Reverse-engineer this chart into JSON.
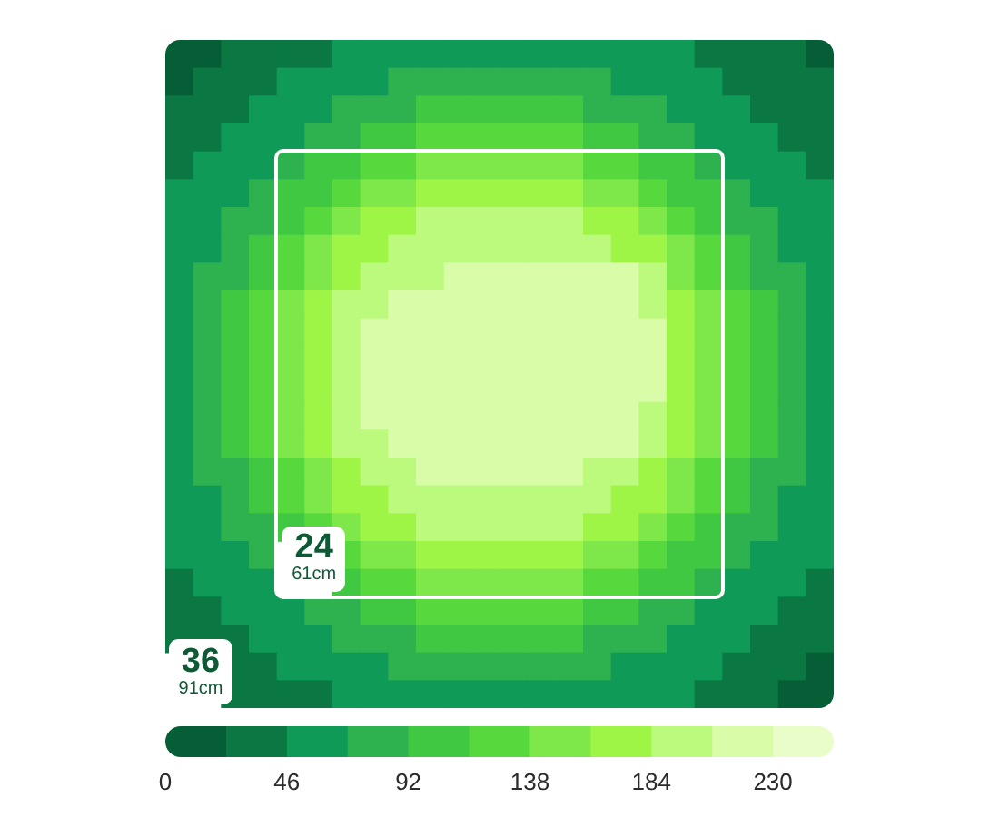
{
  "chart_data": {
    "type": "heatmap",
    "categories": [
      null,
      null,
      null,
      null,
      null,
      null,
      null,
      null,
      null,
      null,
      null,
      null,
      null,
      null,
      null,
      null,
      null,
      null,
      null,
      null,
      null,
      null,
      null,
      null
    ],
    "y_categories": [
      null,
      null,
      null,
      null,
      null,
      null,
      null,
      null,
      null,
      null,
      null,
      null,
      null,
      null,
      null,
      null,
      null,
      null,
      null,
      null,
      null,
      null,
      null,
      null
    ],
    "cells": [
      [
        12,
        12,
        35,
        35,
        35,
        35,
        58,
        58,
        58,
        58,
        58,
        58,
        58,
        58,
        58,
        58,
        58,
        58,
        58,
        35,
        35,
        35,
        35,
        12
      ],
      [
        12,
        35,
        35,
        35,
        58,
        58,
        58,
        58,
        81,
        81,
        81,
        81,
        81,
        81,
        81,
        81,
        58,
        58,
        58,
        58,
        35,
        35,
        35,
        35
      ],
      [
        35,
        35,
        35,
        58,
        58,
        58,
        81,
        81,
        81,
        104,
        104,
        104,
        104,
        104,
        104,
        81,
        81,
        81,
        58,
        58,
        58,
        35,
        35,
        35
      ],
      [
        35,
        35,
        58,
        58,
        58,
        81,
        81,
        104,
        104,
        127,
        127,
        127,
        127,
        127,
        127,
        104,
        104,
        81,
        81,
        58,
        58,
        58,
        35,
        35
      ],
      [
        35,
        58,
        58,
        58,
        81,
        104,
        104,
        127,
        127,
        150,
        150,
        150,
        150,
        150,
        150,
        127,
        127,
        104,
        104,
        81,
        58,
        58,
        58,
        35
      ],
      [
        58,
        58,
        58,
        81,
        104,
        104,
        127,
        150,
        150,
        173,
        173,
        173,
        173,
        173,
        173,
        150,
        150,
        127,
        104,
        104,
        81,
        58,
        58,
        58
      ],
      [
        58,
        58,
        81,
        81,
        104,
        127,
        150,
        173,
        173,
        196,
        196,
        196,
        196,
        196,
        196,
        173,
        173,
        150,
        127,
        104,
        81,
        81,
        58,
        58
      ],
      [
        58,
        58,
        81,
        104,
        127,
        150,
        173,
        173,
        196,
        196,
        196,
        196,
        196,
        196,
        196,
        196,
        173,
        173,
        150,
        127,
        104,
        81,
        58,
        58
      ],
      [
        58,
        81,
        81,
        104,
        127,
        150,
        173,
        196,
        196,
        196,
        219,
        219,
        219,
        219,
        219,
        219,
        219,
        196,
        150,
        127,
        104,
        81,
        81,
        58
      ],
      [
        58,
        81,
        104,
        127,
        150,
        173,
        196,
        196,
        219,
        219,
        219,
        219,
        219,
        219,
        219,
        219,
        219,
        196,
        173,
        150,
        127,
        104,
        81,
        58
      ],
      [
        58,
        81,
        104,
        127,
        150,
        173,
        196,
        219,
        219,
        219,
        219,
        219,
        219,
        219,
        219,
        219,
        219,
        219,
        173,
        150,
        127,
        104,
        81,
        58
      ],
      [
        58,
        81,
        104,
        127,
        150,
        173,
        196,
        219,
        219,
        219,
        219,
        219,
        219,
        219,
        219,
        219,
        219,
        219,
        173,
        150,
        127,
        104,
        81,
        58
      ],
      [
        58,
        81,
        104,
        127,
        150,
        173,
        196,
        219,
        219,
        219,
        219,
        219,
        219,
        219,
        219,
        219,
        219,
        219,
        173,
        150,
        127,
        104,
        81,
        58
      ],
      [
        58,
        81,
        104,
        127,
        150,
        173,
        196,
        219,
        219,
        219,
        219,
        219,
        219,
        219,
        219,
        219,
        219,
        196,
        173,
        150,
        127,
        104,
        81,
        58
      ],
      [
        58,
        81,
        104,
        127,
        150,
        173,
        196,
        196,
        219,
        219,
        219,
        219,
        219,
        219,
        219,
        219,
        219,
        196,
        173,
        150,
        127,
        104,
        81,
        58
      ],
      [
        58,
        81,
        81,
        104,
        127,
        150,
        173,
        196,
        196,
        219,
        219,
        219,
        219,
        219,
        219,
        196,
        196,
        173,
        150,
        127,
        104,
        81,
        81,
        58
      ],
      [
        58,
        58,
        81,
        104,
        127,
        150,
        173,
        173,
        196,
        196,
        196,
        196,
        196,
        196,
        196,
        196,
        173,
        173,
        150,
        127,
        104,
        81,
        58,
        58
      ],
      [
        58,
        58,
        81,
        81,
        104,
        127,
        150,
        173,
        173,
        196,
        196,
        196,
        196,
        196,
        196,
        173,
        173,
        150,
        127,
        104,
        81,
        81,
        58,
        58
      ],
      [
        58,
        58,
        58,
        81,
        null,
        null,
        127,
        150,
        150,
        173,
        173,
        173,
        173,
        173,
        173,
        150,
        150,
        127,
        104,
        104,
        81,
        58,
        58,
        58
      ],
      [
        35,
        58,
        58,
        58,
        null,
        null,
        104,
        127,
        127,
        150,
        150,
        150,
        150,
        150,
        150,
        127,
        127,
        104,
        104,
        81,
        58,
        58,
        58,
        35
      ],
      [
        35,
        35,
        58,
        58,
        58,
        81,
        81,
        104,
        104,
        127,
        127,
        127,
        127,
        127,
        127,
        104,
        104,
        81,
        81,
        58,
        58,
        58,
        35,
        35
      ],
      [
        35,
        35,
        35,
        58,
        58,
        58,
        81,
        81,
        81,
        104,
        104,
        104,
        104,
        104,
        104,
        81,
        81,
        81,
        58,
        58,
        58,
        35,
        35,
        35
      ],
      [
        null,
        null,
        35,
        35,
        58,
        58,
        58,
        58,
        81,
        81,
        81,
        81,
        81,
        81,
        81,
        81,
        58,
        58,
        58,
        58,
        35,
        35,
        35,
        12
      ],
      [
        null,
        null,
        35,
        35,
        35,
        35,
        58,
        58,
        58,
        58,
        58,
        58,
        58,
        58,
        58,
        58,
        58,
        58,
        58,
        35,
        35,
        35,
        12,
        12
      ]
    ],
    "clim": [
      0,
      253
    ],
    "cticks": [
      0,
      46,
      92,
      138,
      184,
      230
    ],
    "colors": [
      "#065e36",
      "#0b7843",
      "#109a57",
      "#2db24f",
      "#40c843",
      "#57d93e",
      "#7ee84a",
      "#9ef545",
      "#bbfa7c",
      "#d8fca8",
      "#e8fdc8"
    ],
    "annotations": [
      "36",
      "91cm",
      "24",
      "61cm"
    ]
  }
}
